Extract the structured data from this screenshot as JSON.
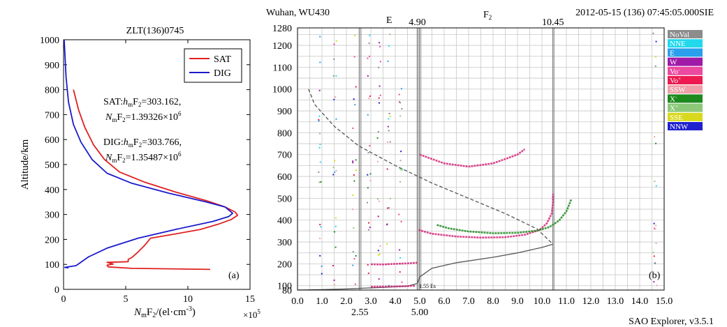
{
  "chart_data": [
    {
      "type": "line",
      "panel_label": "(a)",
      "title": "ZLT(136)0745",
      "xlabel": "NmF2/(el·cm-3)",
      "ylabel": "Altitude/km",
      "x_multiplier": "×10^5",
      "xlim": [
        0,
        15
      ],
      "ylim": [
        0,
        1000
      ],
      "xticks": [
        0,
        5,
        10,
        15
      ],
      "yticks": [
        0,
        100,
        200,
        300,
        400,
        500,
        600,
        700,
        800,
        900,
        1000
      ],
      "legend_position": "top-right",
      "series": [
        {
          "name": "SAT",
          "color": "#e02020",
          "points": [
            [
              11.8,
              80
            ],
            [
              5.5,
              84
            ],
            [
              3.6,
              90
            ],
            [
              3.5,
              97
            ],
            [
              4.0,
              101
            ],
            [
              3.8,
              104
            ],
            [
              3.5,
              108
            ],
            [
              5.2,
              111
            ],
            [
              5.2,
              120
            ],
            [
              5.5,
              128
            ],
            [
              6.0,
              150
            ],
            [
              6.5,
              175
            ],
            [
              7.0,
              205
            ],
            [
              9.0,
              222
            ],
            [
              11.0,
              240
            ],
            [
              12.5,
              262
            ],
            [
              13.5,
              280
            ],
            [
              14.0,
              297
            ],
            [
              13.8,
              310
            ],
            [
              13.0,
              330
            ],
            [
              11.5,
              355
            ],
            [
              9.0,
              390
            ],
            [
              6.5,
              430
            ],
            [
              4.5,
              470
            ],
            [
              3.3,
              520
            ],
            [
              2.4,
              580
            ],
            [
              1.7,
              650
            ],
            [
              1.2,
              720
            ],
            [
              0.8,
              800
            ]
          ]
        },
        {
          "name": "DIG",
          "color": "#1a1acc",
          "points": [
            [
              0.4,
              86
            ],
            [
              0.1,
              88
            ],
            [
              1.0,
              95
            ],
            [
              1.3,
              105
            ],
            [
              2.0,
              130
            ],
            [
              3.5,
              165
            ],
            [
              6.0,
              205
            ],
            [
              9.0,
              240
            ],
            [
              12.0,
              272
            ],
            [
              13.3,
              292
            ],
            [
              13.6,
              305
            ],
            [
              13.0,
              330
            ],
            [
              11.5,
              350
            ],
            [
              8.5,
              385
            ],
            [
              5.5,
              425
            ],
            [
              3.5,
              465
            ],
            [
              2.3,
              520
            ],
            [
              1.4,
              590
            ],
            [
              0.8,
              660
            ],
            [
              0.4,
              750
            ],
            [
              0.2,
              850
            ],
            [
              0.05,
              1000
            ]
          ]
        }
      ],
      "annotations": [
        {
          "series": "SAT",
          "hmF2": "303.162",
          "NmF2": "1.39326",
          "exp": "6"
        },
        {
          "series": "DIG",
          "hmF2": "303.766",
          "NmF2": "1.35487",
          "exp": "6"
        }
      ]
    },
    {
      "type": "scatter",
      "panel_label": "(b)",
      "header_left": "Wuhan, WU430",
      "header_right": "2012-05-15 (136) 07:45:05.000SIE",
      "footer_right": "SAO Explorer, v3.5.1",
      "layer_labels": [
        "E",
        "F",
        "2"
      ],
      "xlim": [
        0.0,
        15.0
      ],
      "ylim": [
        80,
        1280
      ],
      "xticks": [
        "0.0",
        "1.0",
        "2.0",
        "3.0",
        "4.0",
        "5.0",
        "6.0",
        "7.0",
        "8.0",
        "9.0",
        "10.0",
        "11.0",
        "12.0",
        "13.0",
        "14.0",
        "15.0"
      ],
      "yticks": [
        80,
        100,
        200,
        300,
        400,
        500,
        600,
        700,
        800,
        900,
        1000,
        1100,
        1200,
        1280
      ],
      "critical_lines": [
        {
          "x": 2.55,
          "label": "2.55",
          "position": "bottom"
        },
        {
          "x": 4.9,
          "label": "4.90",
          "position": "top"
        },
        {
          "x": 5.0,
          "label": "5.00",
          "position": "bottom"
        },
        {
          "x": 10.45,
          "label": "10.45",
          "position": "top"
        }
      ],
      "small_label": "1.55 Es",
      "legend": [
        {
          "label": "NoVal",
          "color": "#8c8c8c"
        },
        {
          "label": "NNE",
          "color": "#22d8ec"
        },
        {
          "label": "E",
          "color": "#2aa0ec"
        },
        {
          "label": "W",
          "color": "#a01aa8"
        },
        {
          "label": "Vo-",
          "color": "#ec4aa0"
        },
        {
          "label": "Vo+",
          "color": "#ec1a50"
        },
        {
          "label": "SSW",
          "color": "#f0a0a8"
        },
        {
          "label": "X-",
          "color": "#1e8a1e"
        },
        {
          "label": "X+",
          "color": "#8cc87a"
        },
        {
          "label": "SSE",
          "color": "#d8d81e"
        },
        {
          "label": "NNW",
          "color": "#2020d0"
        }
      ],
      "traces": [
        {
          "name": "O-trace F2",
          "color": "#d4287a",
          "points": [
            [
              4.95,
              355
            ],
            [
              5.5,
              338
            ],
            [
              6.5,
              325
            ],
            [
              7.5,
              320
            ],
            [
              8.5,
              322
            ],
            [
              9.3,
              333
            ],
            [
              9.9,
              355
            ],
            [
              10.2,
              385
            ],
            [
              10.4,
              430
            ],
            [
              10.45,
              480
            ],
            [
              10.45,
              520
            ]
          ]
        },
        {
          "name": "X-trace F2",
          "color": "#1e8a1e",
          "points": [
            [
              5.7,
              378
            ],
            [
              6.2,
              362
            ],
            [
              7.0,
              348
            ],
            [
              8.0,
              340
            ],
            [
              9.0,
              342
            ],
            [
              9.8,
              352
            ],
            [
              10.3,
              368
            ],
            [
              10.7,
              398
            ],
            [
              11.0,
              440
            ],
            [
              11.2,
              495
            ]
          ]
        },
        {
          "name": "Es trace",
          "color": "#d4287a",
          "points": [
            [
              3.0,
              95
            ],
            [
              3.6,
              96
            ],
            [
              4.2,
              97
            ],
            [
              4.8,
              99
            ]
          ]
        },
        {
          "name": "E trace",
          "color": "#d4287a",
          "points": [
            [
              3.0,
              198
            ],
            [
              3.5,
              197
            ],
            [
              4.0,
              200
            ],
            [
              4.5,
              202
            ],
            [
              4.9,
              205
            ]
          ]
        },
        {
          "name": "Oblique",
          "color": "#d4287a",
          "points": [
            [
              5.0,
              700
            ],
            [
              6.0,
              660
            ],
            [
              7.0,
              645
            ],
            [
              8.0,
              660
            ],
            [
              9.0,
              700
            ],
            [
              9.3,
              725
            ]
          ]
        }
      ],
      "profile_solid": [
        [
          0.0,
          80
        ],
        [
          1.0,
          82
        ],
        [
          2.0,
          85
        ],
        [
          2.55,
          88
        ],
        [
          3.5,
          92
        ],
        [
          4.5,
          98
        ],
        [
          4.9,
          110
        ],
        [
          5.0,
          140
        ],
        [
          5.5,
          180
        ],
        [
          6.5,
          205
        ],
        [
          8.0,
          230
        ],
        [
          9.0,
          250
        ],
        [
          10.0,
          275
        ],
        [
          10.45,
          290
        ]
      ],
      "profile_dashed": [
        [
          0.45,
          1000
        ],
        [
          0.7,
          930
        ],
        [
          1.5,
          830
        ],
        [
          2.5,
          740
        ],
        [
          4.0,
          650
        ],
        [
          5.5,
          570
        ],
        [
          7.0,
          500
        ],
        [
          8.5,
          430
        ],
        [
          9.8,
          360
        ],
        [
          10.45,
          290
        ]
      ]
    }
  ]
}
